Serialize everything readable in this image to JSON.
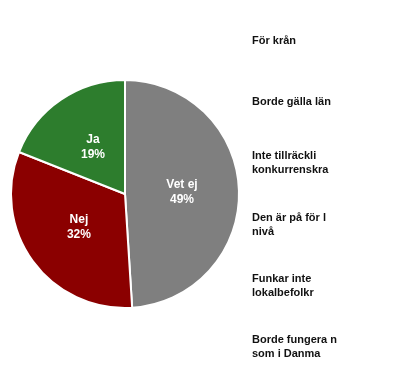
{
  "chart_data": {
    "type": "pie",
    "categories": [
      "Vet ej",
      "Nej",
      "Ja"
    ],
    "values": [
      49,
      32,
      19
    ],
    "value_labels": [
      "49%",
      "32%",
      "19%"
    ],
    "data_labels": true,
    "colors": [
      "#7f7f7f",
      "#8b0000",
      "#2d7d2d"
    ],
    "annotations": [
      "För krån",
      "Borde gälla län",
      "Inte tillräckli\nkonkurrenskra",
      "Den är på för l\nnivå",
      "Funkar inte\nlokalbefolkr",
      "Borde fungera n\nsom i Danma"
    ]
  }
}
